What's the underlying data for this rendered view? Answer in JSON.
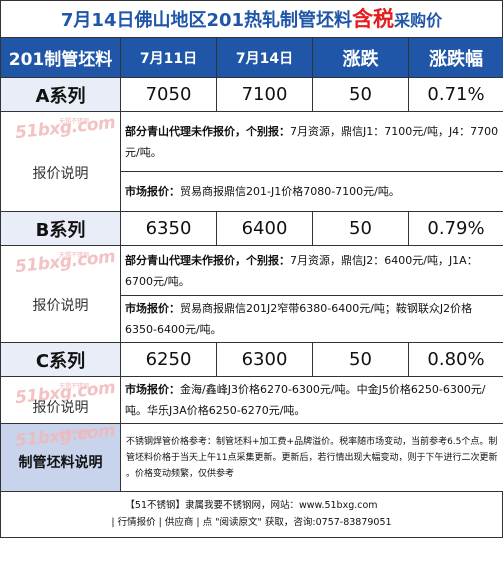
{
  "title": {
    "part1": "7月14日佛山地区201热轧制管坯料",
    "highlight": "含税",
    "part2": "采购价"
  },
  "header": {
    "col1": "201制管坯料",
    "col2": "7月11日",
    "col3": "7月14日",
    "col4": "涨跌",
    "col5": "涨跌幅"
  },
  "watermark": {
    "text": "51bxg.com",
    "sub": "无锡不锈钢"
  },
  "label_text": "报价说明",
  "series": [
    {
      "name": "A系列",
      "prev": "7050",
      "curr": "7100",
      "change": "50",
      "pct": "0.71%",
      "note1_bold": "部分青山代理未作报价，个别报：",
      "note1_text": "7月资源，鼎信J1：7100元/吨，J4：7700元/吨。",
      "note2_bold": "市场报价：",
      "note2_text": "贸易商报鼎信201-J1价格7080-7100元/吨。"
    },
    {
      "name": "B系列",
      "prev": "6350",
      "curr": "6400",
      "change": "50",
      "pct": "0.79%",
      "note1_bold": "部分青山代理未作报价，个别报：",
      "note1_text": "7月资源，鼎信J2：6400元/吨，J1A：6700元/吨。",
      "note2_bold": "市场报价：",
      "note2_text": "贸易商报鼎信201J2窄带6380-6400元/吨；鞍钢联众J2价格6350-6400元/吨。"
    },
    {
      "name": "C系列",
      "prev": "6250",
      "curr": "6300",
      "change": "50",
      "pct": "0.80%",
      "note2_bold": "市场报价：",
      "note2_text": "金海/鑫峰J3价格6270-6300元/吨。中金J5价格6250-6300元/吨。华乐J3A价格6250-6270元/吨。"
    }
  ],
  "bottom": {
    "label": "制管坯料说明",
    "note": "不锈钢焊管价格参考：制管坯料+加工费+品牌溢价。税率随市场变动，当前参考6.5个点。制管坯料价格于当天上午11点采集更新。更新后，若行情出现大幅变动，则于下午进行二次更新 。价格变动频繁，仅供参考"
  },
  "footer": {
    "line1": "【51不锈钢】隶属我要不锈钢网，网站：www.51bxg.com",
    "line2": "| 行情报价 | 供应商 | 点 \"阅读原文\" 获取，咨询:0757-83879051"
  }
}
